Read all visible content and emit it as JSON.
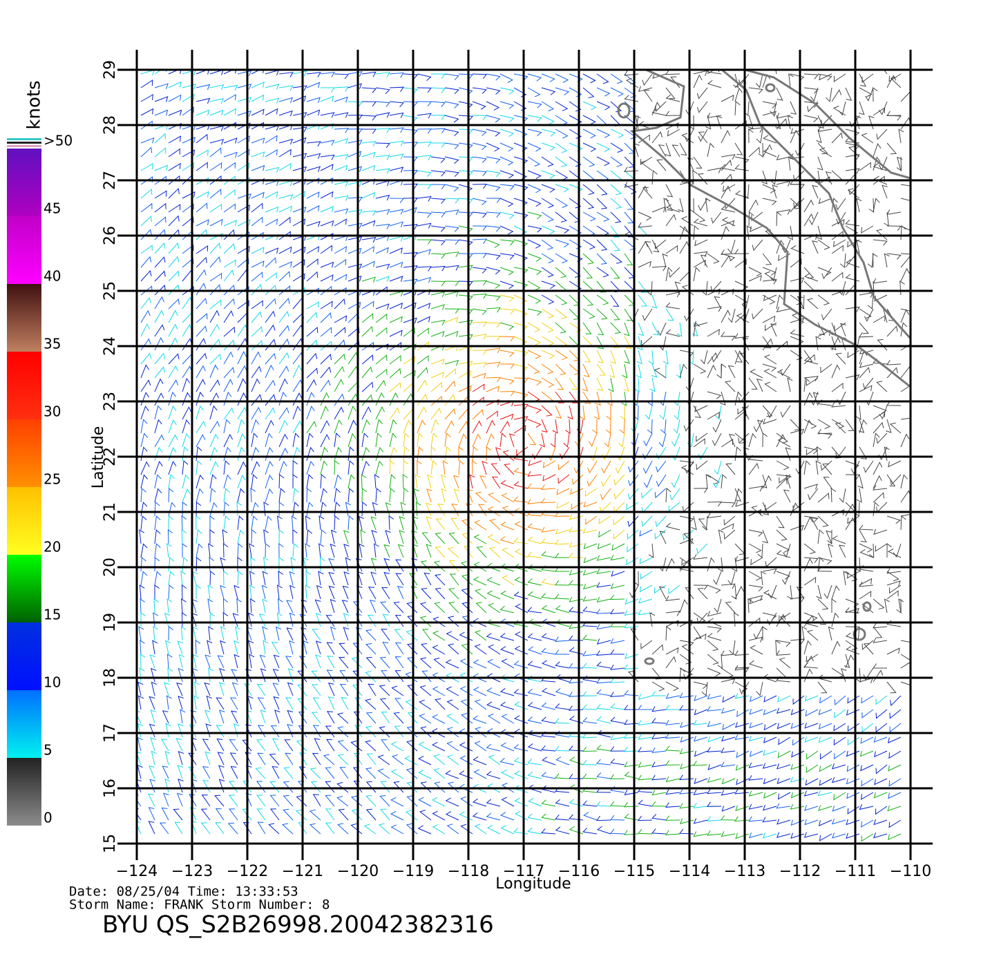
{
  "map": {
    "title": "BYU  QS_S2B26998.20042382316",
    "date_line": "Date: 08/25/04   Time: 13:33:53",
    "storm_line": "Storm Name: FRANK   Storm Number: 8",
    "xlabel": "Longitude",
    "ylabel": "Latitude",
    "xlim": [
      -124,
      -110
    ],
    "ylim": [
      15,
      29
    ],
    "xticks": [
      {
        "value": -124,
        "label": "−124"
      },
      {
        "value": -123,
        "label": "−123"
      },
      {
        "value": -122,
        "label": "−122"
      },
      {
        "value": -121,
        "label": "−121"
      },
      {
        "value": -120,
        "label": "−120"
      },
      {
        "value": -119,
        "label": "−119"
      },
      {
        "value": -118,
        "label": "−118"
      },
      {
        "value": -117,
        "label": "−117"
      },
      {
        "value": -116,
        "label": "−116"
      },
      {
        "value": -115,
        "label": "−115"
      },
      {
        "value": -114,
        "label": "−114"
      },
      {
        "value": -113,
        "label": "−113"
      },
      {
        "value": -112,
        "label": "−112"
      },
      {
        "value": -111,
        "label": "−111"
      },
      {
        "value": -110,
        "label": "−110"
      }
    ],
    "yticks": [
      15,
      16,
      17,
      18,
      19,
      20,
      21,
      22,
      23,
      24,
      25,
      26,
      27,
      28,
      29
    ],
    "colorbar": {
      "label": "knots",
      "lim": [
        0,
        50
      ],
      "ticks": [
        0,
        5,
        10,
        15,
        20,
        25,
        30,
        35,
        40,
        45,
        {
          "value": 50,
          "label": ">50"
        }
      ]
    }
  }
}
